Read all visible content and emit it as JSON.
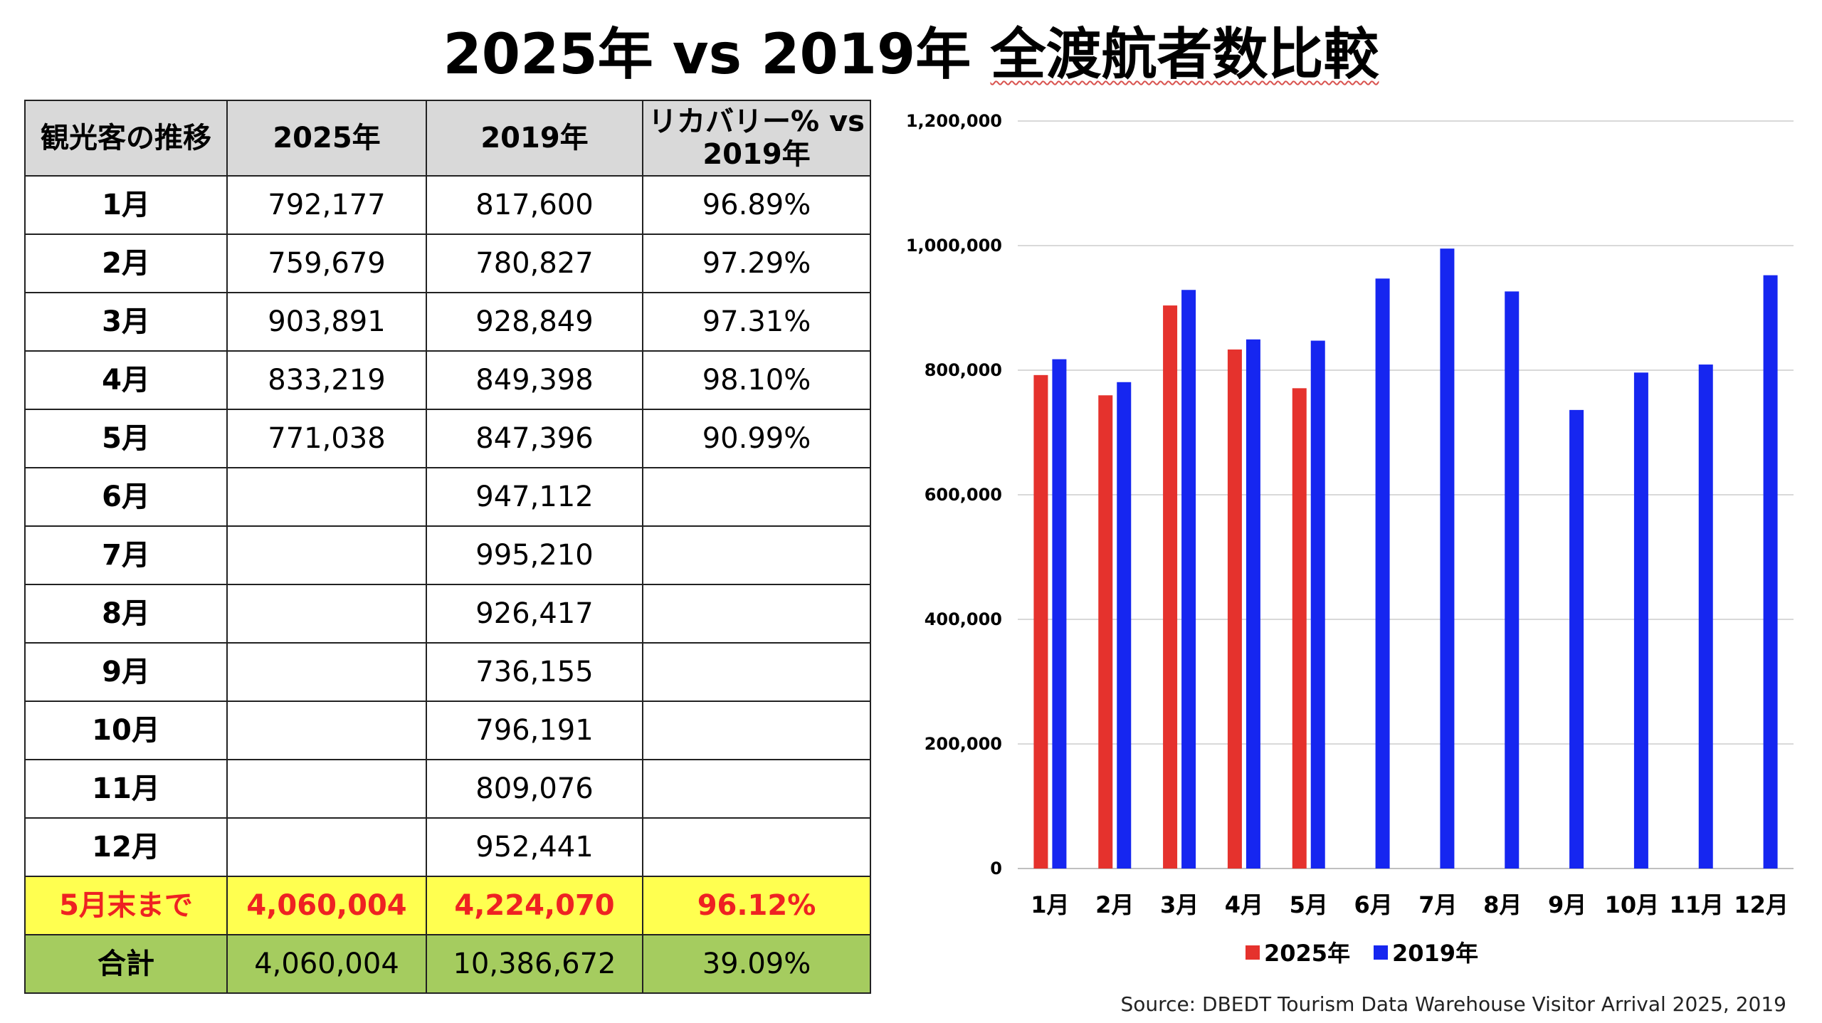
{
  "title": {
    "part1": "2025年 vs 2019年 ",
    "part2": "全渡航者数比較"
  },
  "table": {
    "headers": [
      "観光客の推移",
      "2025年",
      "2019年",
      "リカバリー% vs 2019年"
    ],
    "rows": [
      [
        "1月",
        "792,177",
        "817,600",
        "96.89%"
      ],
      [
        "2月",
        "759,679",
        "780,827",
        "97.29%"
      ],
      [
        "3月",
        "903,891",
        "928,849",
        "97.31%"
      ],
      [
        "4月",
        "833,219",
        "849,398",
        "98.10%"
      ],
      [
        "5月",
        "771,038",
        "847,396",
        "90.99%"
      ],
      [
        "6月",
        "",
        "947,112",
        ""
      ],
      [
        "7月",
        "",
        "995,210",
        ""
      ],
      [
        "8月",
        "",
        "926,417",
        ""
      ],
      [
        "9月",
        "",
        "736,155",
        ""
      ],
      [
        "10月",
        "",
        "796,191",
        ""
      ],
      [
        "11月",
        "",
        "809,076",
        ""
      ],
      [
        "12月",
        "",
        "952,441",
        ""
      ]
    ],
    "ytd_row": [
      "5月末まで",
      "4,060,004",
      "4,224,070",
      "96.12%"
    ],
    "total_row": [
      "合計",
      "4,060,004",
      "10,386,672",
      "39.09%"
    ]
  },
  "chart_data": {
    "type": "bar",
    "categories": [
      "1月",
      "2月",
      "3月",
      "4月",
      "5月",
      "6月",
      "7月",
      "8月",
      "9月",
      "10月",
      "11月",
      "12月"
    ],
    "series": [
      {
        "name": "2025年",
        "color": "#e5322d",
        "values": [
          792177,
          759679,
          903891,
          833219,
          771038,
          null,
          null,
          null,
          null,
          null,
          null,
          null
        ]
      },
      {
        "name": "2019年",
        "color": "#1626f0",
        "values": [
          817600,
          780827,
          928849,
          849398,
          847396,
          947112,
          995210,
          926417,
          736155,
          796191,
          809076,
          952441
        ]
      }
    ],
    "ylim": [
      0,
      1200000
    ],
    "yticks": [
      "0",
      "200,000",
      "400,000",
      "600,000",
      "800,000",
      "1,000,000",
      "1,200,000"
    ],
    "grid": true,
    "legend": "bottom"
  },
  "source": "Source: DBEDT Tourism Data Warehouse Visitor Arrival 2025, 2019",
  "colors": {
    "ytd_bg": "#ffff50",
    "ytd_text": "#ee2222",
    "total_bg": "#a5cc5f",
    "header_bg": "#d9d9d9"
  }
}
